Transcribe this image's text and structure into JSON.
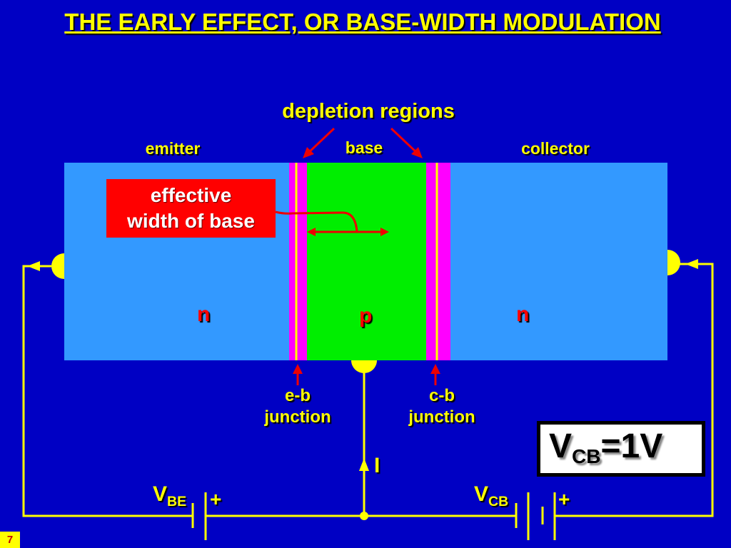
{
  "title": "THE EARLY EFFECT, OR BASE-WIDTH MODULATION",
  "labels": {
    "depletion_regions": "depletion regions",
    "emitter": "emitter",
    "base": "base",
    "collector": "collector",
    "effective_width_line1": "effective",
    "effective_width_line2": "width of base",
    "emitter_type": "n",
    "base_type": "p",
    "collector_type": "n",
    "eb_junction_line1": "e-b",
    "eb_junction_line2": "junction",
    "cb_junction_line1": "c-b",
    "cb_junction_line2": "junction",
    "current": "I",
    "vbe_main": "V",
    "vbe_sub": "BE",
    "vcb_main": "V",
    "vcb_sub": "CB",
    "plus": "+",
    "vcb_value_main": "V",
    "vcb_value_sub": "CB",
    "vcb_value_rest": "=1V"
  },
  "page_number": "7",
  "colors": {
    "background": "#0000c4",
    "n_region": "#3399ff",
    "p_region": "#00ee00",
    "depletion": "#ff00ff",
    "wire": "#ffff00",
    "annotation": "#ff0000"
  }
}
